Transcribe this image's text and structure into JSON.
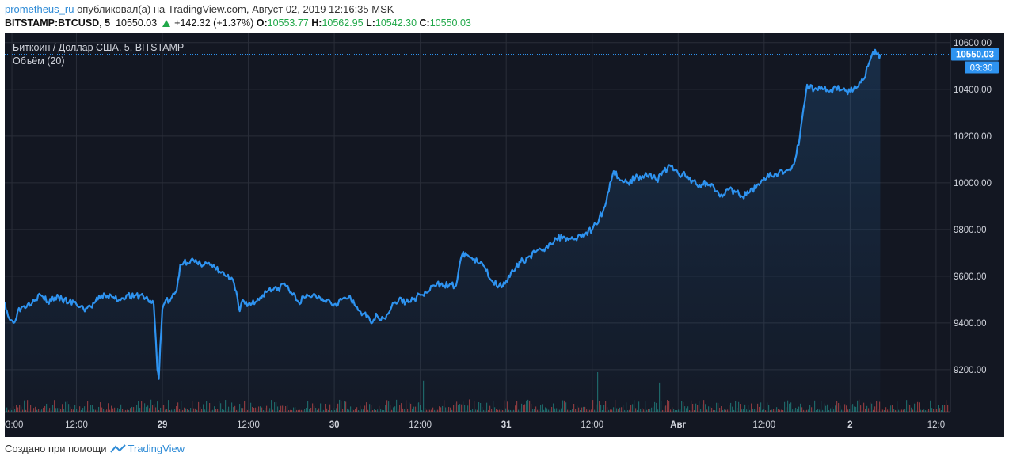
{
  "header": {
    "user": "prometheus_ru",
    "published_text": "опубликовал(а) на TradingView.com, Август 02, 2019 12:16:35 MSK"
  },
  "ohlc": {
    "symbol": "BITSTAMP:BTCUSD, 5",
    "last": "10550.03",
    "change": "+142.32 (+1.37%)",
    "o_label": "O:",
    "o_value": "10553.77",
    "h_label": "H:",
    "h_value": "10562.95",
    "l_label": "L:",
    "l_value": "10542.30",
    "c_label": "C:",
    "c_value": "10550.03"
  },
  "legend": {
    "title": "Биткоин / Доллар США, 5, BITSTAMP",
    "volume": "Объём (20)"
  },
  "price_label": "10550.03",
  "timer_label": "03:30",
  "footer": {
    "created": "Создано при помощи",
    "brand": "TradingView"
  },
  "colors": {
    "background": "#131722",
    "line": "#2e93f0",
    "grid": "#2a2e39",
    "text": "#d1d4dc",
    "up": "#21a84a",
    "vol_up": "#26a69a",
    "vol_down": "#ef5350"
  },
  "chart_data": {
    "type": "line",
    "ylim": [
      9020,
      10640
    ],
    "y_ticks": [
      "10600.00",
      "10400.00",
      "10200.00",
      "10000.00",
      "9800.00",
      "9600.00",
      "9400.00",
      "9200.00"
    ],
    "y_tick_values": [
      10600,
      10400,
      10200,
      10000,
      9800,
      9600,
      9400,
      9200
    ],
    "x_ticks": [
      "03:00",
      "12:00",
      "29",
      "12:00",
      "30",
      "12:00",
      "31",
      "12:00",
      "Авг",
      "12:00",
      "2",
      "12:0"
    ],
    "x_tick_hours": [
      3,
      12,
      24,
      36,
      48,
      60,
      72,
      84,
      96,
      108,
      120,
      132
    ],
    "x_range_hours": [
      2,
      134
    ],
    "last_price": 10550.03,
    "series": [
      {
        "points": [
          [
            2.0,
            9490
          ],
          [
            2.6,
            9420
          ],
          [
            3.2,
            9400
          ],
          [
            3.8,
            9450
          ],
          [
            4.5,
            9470
          ],
          [
            5.2,
            9480
          ],
          [
            6.0,
            9500
          ],
          [
            7.0,
            9520
          ],
          [
            8.0,
            9490
          ],
          [
            9.0,
            9510
          ],
          [
            10.0,
            9500
          ],
          [
            11.0,
            9490
          ],
          [
            12.0,
            9480
          ],
          [
            13.0,
            9460
          ],
          [
            14.0,
            9470
          ],
          [
            15.0,
            9500
          ],
          [
            16.0,
            9520
          ],
          [
            17.0,
            9510
          ],
          [
            18.0,
            9500
          ],
          [
            19.0,
            9520
          ],
          [
            20.0,
            9510
          ],
          [
            21.0,
            9520
          ],
          [
            22.0,
            9500
          ],
          [
            22.8,
            9480
          ],
          [
            23.1,
            9320
          ],
          [
            23.3,
            9200
          ],
          [
            23.5,
            9160
          ],
          [
            23.7,
            9300
          ],
          [
            24.0,
            9460
          ],
          [
            24.5,
            9500
          ],
          [
            25.0,
            9490
          ],
          [
            26.0,
            9540
          ],
          [
            26.5,
            9650
          ],
          [
            27.0,
            9660
          ],
          [
            28.0,
            9670
          ],
          [
            29.0,
            9650
          ],
          [
            30.0,
            9660
          ],
          [
            31.0,
            9640
          ],
          [
            32.0,
            9620
          ],
          [
            33.0,
            9600
          ],
          [
            34.0,
            9570
          ],
          [
            34.8,
            9450
          ],
          [
            35.2,
            9500
          ],
          [
            36.0,
            9480
          ],
          [
            37.0,
            9490
          ],
          [
            38.0,
            9520
          ],
          [
            39.0,
            9550
          ],
          [
            40.0,
            9540
          ],
          [
            41.0,
            9570
          ],
          [
            42.0,
            9530
          ],
          [
            43.0,
            9490
          ],
          [
            44.0,
            9510
          ],
          [
            45.0,
            9520
          ],
          [
            46.0,
            9510
          ],
          [
            47.0,
            9500
          ],
          [
            48.0,
            9480
          ],
          [
            49.0,
            9500
          ],
          [
            50.0,
            9510
          ],
          [
            51.0,
            9470
          ],
          [
            52.0,
            9440
          ],
          [
            53.0,
            9410
          ],
          [
            54.0,
            9430
          ],
          [
            55.0,
            9420
          ],
          [
            56.0,
            9470
          ],
          [
            57.0,
            9500
          ],
          [
            58.0,
            9490
          ],
          [
            59.0,
            9500
          ],
          [
            60.0,
            9520
          ],
          [
            61.0,
            9530
          ],
          [
            62.0,
            9560
          ],
          [
            63.0,
            9570
          ],
          [
            64.0,
            9560
          ],
          [
            65.0,
            9560
          ],
          [
            65.7,
            9680
          ],
          [
            66.3,
            9700
          ],
          [
            67.0,
            9680
          ],
          [
            68.0,
            9660
          ],
          [
            69.0,
            9640
          ],
          [
            70.0,
            9580
          ],
          [
            71.0,
            9560
          ],
          [
            72.0,
            9580
          ],
          [
            73.0,
            9620
          ],
          [
            74.0,
            9660
          ],
          [
            75.0,
            9680
          ],
          [
            76.0,
            9700
          ],
          [
            77.0,
            9710
          ],
          [
            78.0,
            9740
          ],
          [
            79.0,
            9760
          ],
          [
            80.0,
            9770
          ],
          [
            81.0,
            9760
          ],
          [
            82.0,
            9770
          ],
          [
            83.0,
            9780
          ],
          [
            84.0,
            9800
          ],
          [
            85.0,
            9850
          ],
          [
            85.8,
            9900
          ],
          [
            86.5,
            10000
          ],
          [
            87.0,
            10050
          ],
          [
            88.0,
            10010
          ],
          [
            89.0,
            10000
          ],
          [
            90.0,
            10020
          ],
          [
            91.0,
            10030
          ],
          [
            92.0,
            10040
          ],
          [
            93.0,
            10010
          ],
          [
            94.0,
            10050
          ],
          [
            95.0,
            10070
          ],
          [
            96.0,
            10040
          ],
          [
            97.0,
            10030
          ],
          [
            98.0,
            10010
          ],
          [
            99.0,
            9990
          ],
          [
            100.0,
            10000
          ],
          [
            101.0,
            9980
          ],
          [
            102.0,
            9950
          ],
          [
            103.0,
            9970
          ],
          [
            104.0,
            9960
          ],
          [
            105.0,
            9940
          ],
          [
            106.0,
            9960
          ],
          [
            107.0,
            9990
          ],
          [
            108.0,
            10020
          ],
          [
            109.0,
            10030
          ],
          [
            110.0,
            10040
          ],
          [
            111.0,
            10050
          ],
          [
            111.8,
            10060
          ],
          [
            112.5,
            10120
          ],
          [
            113.0,
            10200
          ],
          [
            113.5,
            10320
          ],
          [
            114.0,
            10420
          ],
          [
            115.0,
            10400
          ],
          [
            116.0,
            10410
          ],
          [
            117.0,
            10390
          ],
          [
            118.0,
            10410
          ],
          [
            119.0,
            10400
          ],
          [
            120.0,
            10390
          ],
          [
            121.0,
            10410
          ],
          [
            121.8,
            10440
          ],
          [
            122.5,
            10500
          ],
          [
            123.2,
            10560
          ],
          [
            123.8,
            10550
          ],
          [
            124.0,
            10540
          ],
          [
            124.2,
            10550
          ]
        ]
      }
    ]
  }
}
